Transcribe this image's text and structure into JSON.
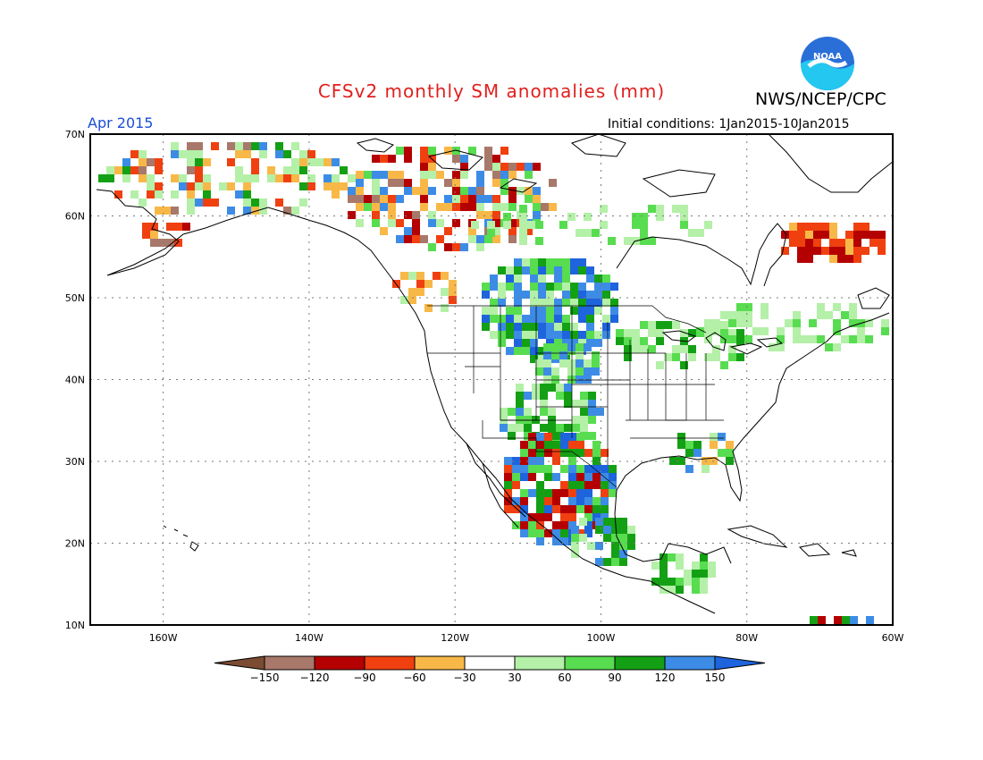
{
  "header": {
    "title": "CFSv2 monthly SM anomalies (mm)",
    "agency": "NWS/NCEP/CPC",
    "month": "Apr 2015",
    "initial_conditions": "Initial conditions: 1Jan2015-10Jan2015",
    "logo_text": "NOAA"
  },
  "map": {
    "lon_labels": [
      "160W",
      "140W",
      "120W",
      "100W",
      "80W",
      "60W"
    ],
    "lat_labels": [
      "70N",
      "60N",
      "50N",
      "40N",
      "30N",
      "20N",
      "10N"
    ],
    "lon_range": [
      -170,
      -60
    ],
    "lat_range": [
      10,
      70
    ],
    "grid": true,
    "anomaly_regions": [
      {
        "region": "western Alaska / Bering coast",
        "class": "-90 to -60 (mixed)"
      },
      {
        "region": "northwest Canada (Yukon/Mackenzie)",
        "class": "mixed -150 to 60"
      },
      {
        "region": "northern Great Plains / Montana",
        "class": "120 to 150+"
      },
      {
        "region": "southern Rockies / northwest Mexico",
        "class": "120 to 150+"
      },
      {
        "region": "Texas / northeast Mexico",
        "class": "90 to 120"
      },
      {
        "region": "Labrador / northern Quebec",
        "class": "-120 to -90"
      },
      {
        "region": "Great Lakes / New England",
        "class": "30 to 90"
      }
    ]
  },
  "colorbar": {
    "tick_labels": [
      "-150",
      "-120",
      "-90",
      "-60",
      "-30",
      "30",
      "60",
      "90",
      "120",
      "150"
    ],
    "colors": [
      "#7b4b32",
      "#a8786a",
      "#b40000",
      "#f04010",
      "#f8b848",
      "#ffffff",
      "#b4f0a8",
      "#58dc50",
      "#14a014",
      "#3c8ce6",
      "#1e64dc"
    ]
  }
}
